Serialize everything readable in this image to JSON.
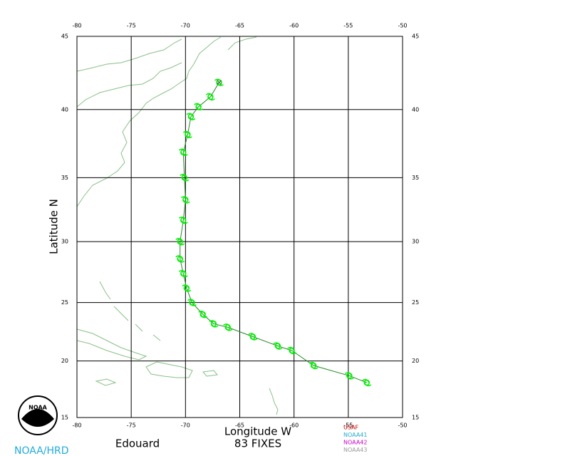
{
  "chart_data": {
    "type": "track-map",
    "projection": "mercator",
    "xlabel": "Longitude  W",
    "ylabel": "Latitude  N",
    "storm": "Edouard",
    "fixes_text": "83 FIXES",
    "xlim": [
      -80,
      -50
    ],
    "xticks": [
      -80,
      -75,
      -70,
      -65,
      -60,
      -55,
      -50
    ],
    "ylim": [
      15,
      45
    ],
    "yticks": [
      15,
      20,
      25,
      30,
      35,
      40,
      45
    ],
    "grid": true,
    "track": {
      "color": "#00ee00",
      "line_color": "#228822",
      "x": [
        -53.3,
        -54.9,
        -58.2,
        -60.2,
        -61.5,
        -63.8,
        -66.1,
        -67.4,
        -68.4,
        -69.4,
        -69.9,
        -70.2,
        -70.5,
        -70.5,
        -70.2,
        -70.0,
        -70.1,
        -70.2,
        -69.8,
        -69.5,
        -68.8,
        -67.7,
        -66.9
      ],
      "y": [
        18.1,
        18.7,
        19.6,
        20.9,
        21.3,
        22.1,
        22.9,
        23.2,
        24.0,
        25.0,
        26.2,
        27.4,
        28.6,
        30.0,
        31.7,
        33.3,
        35.0,
        36.9,
        38.2,
        39.5,
        40.2,
        40.9,
        41.9
      ]
    },
    "legend": [
      {
        "name": "USAF",
        "color": "#cc0000"
      },
      {
        "name": "NOAA41",
        "color": "#22aacc"
      },
      {
        "name": "NOAA42",
        "color": "#cc00cc"
      },
      {
        "name": "NOAA43",
        "color": "#999999"
      }
    ],
    "logo": {
      "text": "NOAA",
      "caption": "NOAA/HRD",
      "caption_color": "#22aadd"
    }
  }
}
